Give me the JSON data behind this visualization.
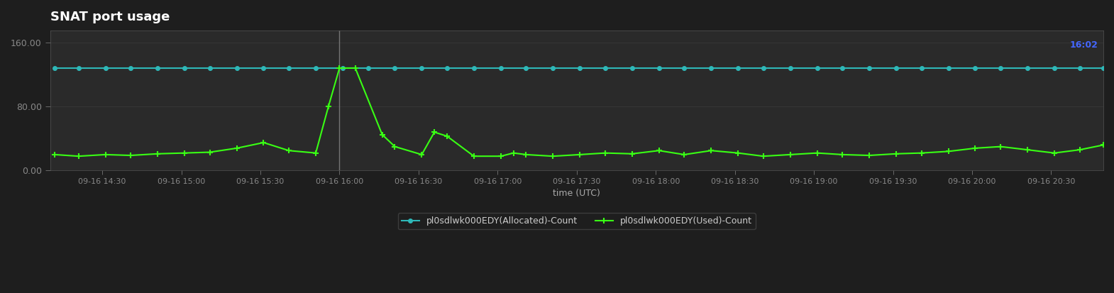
{
  "title": "SNAT port usage",
  "bg_color": "#1e1e1e",
  "plot_bg_color": "#2a2a2a",
  "title_color": "#ffffff",
  "axis_label_color": "#aaaaaa",
  "tick_color": "#888888",
  "grid_color": "#444444",
  "xlabel": "time (UTC)",
  "ylabel": "",
  "ylim": [
    0,
    175
  ],
  "yticks": [
    0.0,
    80.0,
    160.0
  ],
  "ytick_labels": [
    "0.00",
    "80.00",
    "160.00"
  ],
  "vline_x": 16.0,
  "vline_color": "#888888",
  "allocated_color": "#2eb8b8",
  "used_color": "#39ff14",
  "allocated_label": "pl0sdlwk000EDY(Allocated)-Count",
  "used_label": "pl0sdlwk000EDY(Used)-Count",
  "legend_bg": "#1e1e1e",
  "legend_text_color": "#cccccc",
  "annotation_color": "#4444ff",
  "annotation_text": "16:02",
  "x_ticks": [
    14.5,
    15.0,
    15.5,
    16.0,
    16.5,
    17.0,
    17.5,
    18.0,
    18.5,
    19.0,
    19.5,
    20.0,
    20.5
  ],
  "x_tick_labels": [
    "09-16 14:30",
    "09-16 15:00",
    "09-16 15:30",
    "09-16 16:00",
    "09-16 16:30",
    "09-16 17:00",
    "09-16 17:30",
    "09-16 18:00",
    "09-16 18:30",
    "09-16 19:00",
    "09-16 19:30",
    "09-16 20:00",
    "09-16 20:30"
  ],
  "xlim": [
    14.17,
    20.83
  ],
  "allocated_x": [
    14.2,
    14.35,
    14.52,
    14.68,
    14.85,
    15.02,
    15.18,
    15.35,
    15.52,
    15.68,
    15.85,
    16.02,
    16.18,
    16.35,
    16.52,
    16.68,
    16.85,
    17.02,
    17.18,
    17.35,
    17.52,
    17.68,
    17.85,
    18.02,
    18.18,
    18.35,
    18.52,
    18.68,
    18.85,
    19.02,
    19.18,
    19.35,
    19.52,
    19.68,
    19.85,
    20.02,
    20.18,
    20.35,
    20.52,
    20.68,
    20.83
  ],
  "allocated_y": [
    128,
    128,
    128,
    128,
    128,
    128,
    128,
    128,
    128,
    128,
    128,
    128,
    128,
    128,
    128,
    128,
    128,
    128,
    128,
    128,
    128,
    128,
    128,
    128,
    128,
    128,
    128,
    128,
    128,
    128,
    128,
    128,
    128,
    128,
    128,
    128,
    128,
    128,
    128,
    128,
    128
  ],
  "used_x": [
    14.2,
    14.35,
    14.52,
    14.68,
    14.85,
    15.02,
    15.18,
    15.35,
    15.52,
    15.68,
    15.85,
    15.93,
    16.0,
    16.1,
    16.27,
    16.35,
    16.52,
    16.6,
    16.68,
    16.85,
    17.02,
    17.1,
    17.18,
    17.35,
    17.52,
    17.68,
    17.85,
    18.02,
    18.18,
    18.35,
    18.52,
    18.68,
    18.85,
    19.02,
    19.18,
    19.35,
    19.52,
    19.68,
    19.85,
    20.02,
    20.18,
    20.35,
    20.52,
    20.68,
    20.83
  ],
  "used_y": [
    20,
    18,
    20,
    19,
    21,
    22,
    23,
    28,
    35,
    25,
    22,
    80,
    128,
    128,
    45,
    30,
    20,
    48,
    43,
    18,
    18,
    22,
    20,
    18,
    20,
    22,
    21,
    25,
    20,
    25,
    22,
    18,
    20,
    22,
    20,
    19,
    21,
    22,
    24,
    28,
    30,
    26,
    22,
    26,
    32
  ]
}
